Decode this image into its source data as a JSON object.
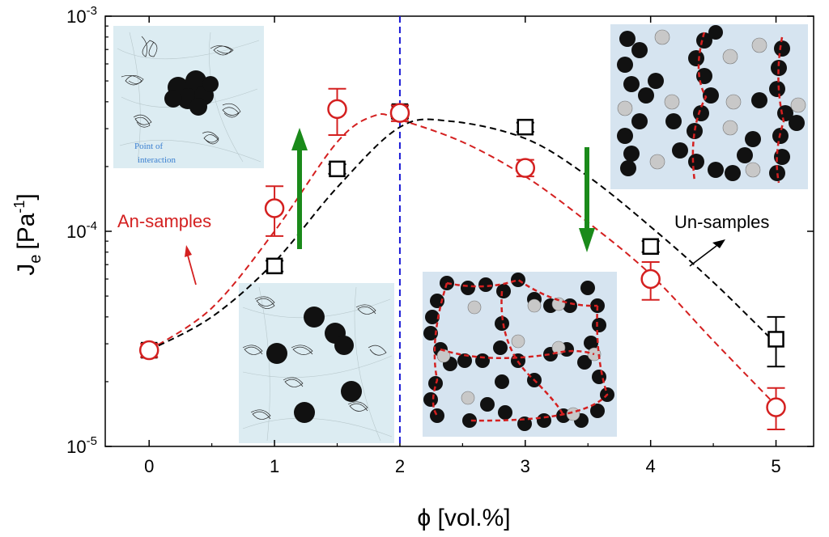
{
  "chart_data": {
    "type": "scatter",
    "xlabel": "ϕ [vol.%]",
    "ylabel_main": "J",
    "ylabel_sub": "e",
    "ylabel_unit": "[Pa",
    "ylabel_sup": "-1",
    "ylabel_close": "]",
    "xlim": [
      -0.35,
      5.3
    ],
    "ylim": [
      1e-05,
      0.001
    ],
    "yscale": "log",
    "xticks": [
      0,
      1,
      2,
      3,
      4,
      5
    ],
    "xtick_labels": [
      "0",
      "1",
      "2",
      "3",
      "4",
      "5"
    ],
    "yticks": [
      {
        "value": 1e-05,
        "base": "10",
        "exp": "-5"
      },
      {
        "value": 0.0001,
        "base": "10",
        "exp": "-4"
      },
      {
        "value": 0.001,
        "base": "10",
        "exp": "-3"
      }
    ],
    "vline_x": 2,
    "series": [
      {
        "name": "An-samples",
        "marker": "circle",
        "color": "#d42020",
        "points": [
          {
            "x": 0,
            "y": 2.8e-05,
            "lo": 2.6e-05,
            "hi": 3e-05
          },
          {
            "x": 1,
            "y": 0.000128,
            "lo": 9.5e-05,
            "hi": 0.000162
          },
          {
            "x": 1.5,
            "y": 0.00037,
            "lo": 0.00028,
            "hi": 0.00046
          },
          {
            "x": 2,
            "y": 0.000355,
            "lo": 0.000325,
            "hi": 0.000385
          },
          {
            "x": 3,
            "y": 0.000197,
            "lo": 0.00018,
            "hi": 0.000215
          },
          {
            "x": 4,
            "y": 6e-05,
            "lo": 4.8e-05,
            "hi": 7.2e-05
          },
          {
            "x": 5,
            "y": 1.52e-05,
            "lo": 1.2e-05,
            "hi": 1.87e-05
          }
        ],
        "fit": [
          {
            "x": 0,
            "y": 2.8e-05
          },
          {
            "x": 0.5,
            "y": 4.4e-05
          },
          {
            "x": 1,
            "y": 0.0001
          },
          {
            "x": 1.5,
            "y": 0.00026
          },
          {
            "x": 1.8,
            "y": 0.000345
          },
          {
            "x": 2,
            "y": 0.00033
          },
          {
            "x": 2.5,
            "y": 0.00026
          },
          {
            "x": 3,
            "y": 0.00018
          },
          {
            "x": 3.5,
            "y": 0.00011
          },
          {
            "x": 4,
            "y": 6.3e-05
          },
          {
            "x": 4.5,
            "y": 3.1e-05
          },
          {
            "x": 5,
            "y": 1.55e-05
          }
        ]
      },
      {
        "name": "Un-samples",
        "marker": "square",
        "color": "#000000",
        "points": [
          {
            "x": 0,
            "y": 2.8e-05,
            "lo": 2.7e-05,
            "hi": 2.9e-05
          },
          {
            "x": 1,
            "y": 6.9e-05,
            "lo": 6.5e-05,
            "hi": 7.3e-05
          },
          {
            "x": 1.5,
            "y": 0.000195,
            "lo": 0.000185,
            "hi": 0.000205
          },
          {
            "x": 2,
            "y": 0.00036,
            "lo": 0.000335,
            "hi": 0.000385
          },
          {
            "x": 3,
            "y": 0.000305,
            "lo": 0.00029,
            "hi": 0.00032
          },
          {
            "x": 4,
            "y": 8.5e-05,
            "lo": 8e-05,
            "hi": 9e-05
          },
          {
            "x": 5,
            "y": 3.15e-05,
            "lo": 2.35e-05,
            "hi": 4e-05
          }
        ],
        "fit": [
          {
            "x": 0,
            "y": 2.8e-05
          },
          {
            "x": 0.5,
            "y": 4e-05
          },
          {
            "x": 1,
            "y": 7.2e-05
          },
          {
            "x": 1.5,
            "y": 0.00016
          },
          {
            "x": 2,
            "y": 0.000305
          },
          {
            "x": 2.4,
            "y": 0.000325
          },
          {
            "x": 3,
            "y": 0.00027
          },
          {
            "x": 3.5,
            "y": 0.00018
          },
          {
            "x": 4,
            "y": 0.000105
          },
          {
            "x": 4.5,
            "y": 5.8e-05
          },
          {
            "x": 5,
            "y": 3e-05
          }
        ]
      }
    ],
    "annotations": {
      "an_label": "An-samples",
      "un_label": "Un-samples",
      "inset_note_line1": "Point of",
      "inset_note_line2": "interaction"
    },
    "arrow_color": "#1a8a1a",
    "inset_bg": "#d6e4f0",
    "inset_tl_bg": "#dcecf2"
  }
}
